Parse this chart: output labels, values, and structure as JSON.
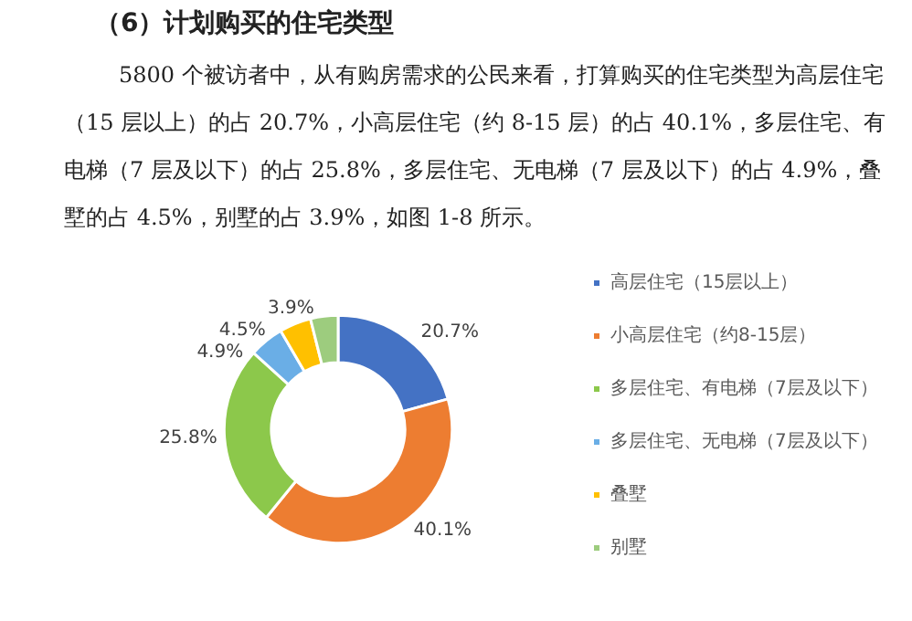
{
  "chart_data": {
    "type": "donut",
    "title": "（6）计划购买的住宅类型",
    "annotations": [
      "5800 个被访者中，从有购房需求的公民来看，打算购买的住宅类型为高层住宅（15 层以上）的占 20.7%，小高层住宅（约 8-15 层）的占 40.1%，多层住宅、有电梯（7 层及以下）的占 25.8%，多层住宅、无电梯（7 层及以下）的占 4.9%，叠墅的占 4.5%，别墅的占 3.9%，如图 1-8 所示。"
    ],
    "categories": [
      "高层住宅（15层以上）",
      "小高层住宅（约8-15层）",
      "多层住宅、有电梯（7层及以下）",
      "多层住宅、无电梯（7层及以下）",
      "叠墅",
      "别墅"
    ],
    "values": [
      20.7,
      40.1,
      25.8,
      4.9,
      4.5,
      3.9
    ],
    "colors": [
      "#4472c4",
      "#ed7d31",
      "#8cc84b",
      "#6aaee6",
      "#ffc000",
      "#9dcc7e"
    ],
    "value_labels": [
      "20.7%",
      "40.1%",
      "25.8%",
      "4.9%",
      "4.5%",
      "3.9%"
    ],
    "legend": "right"
  }
}
